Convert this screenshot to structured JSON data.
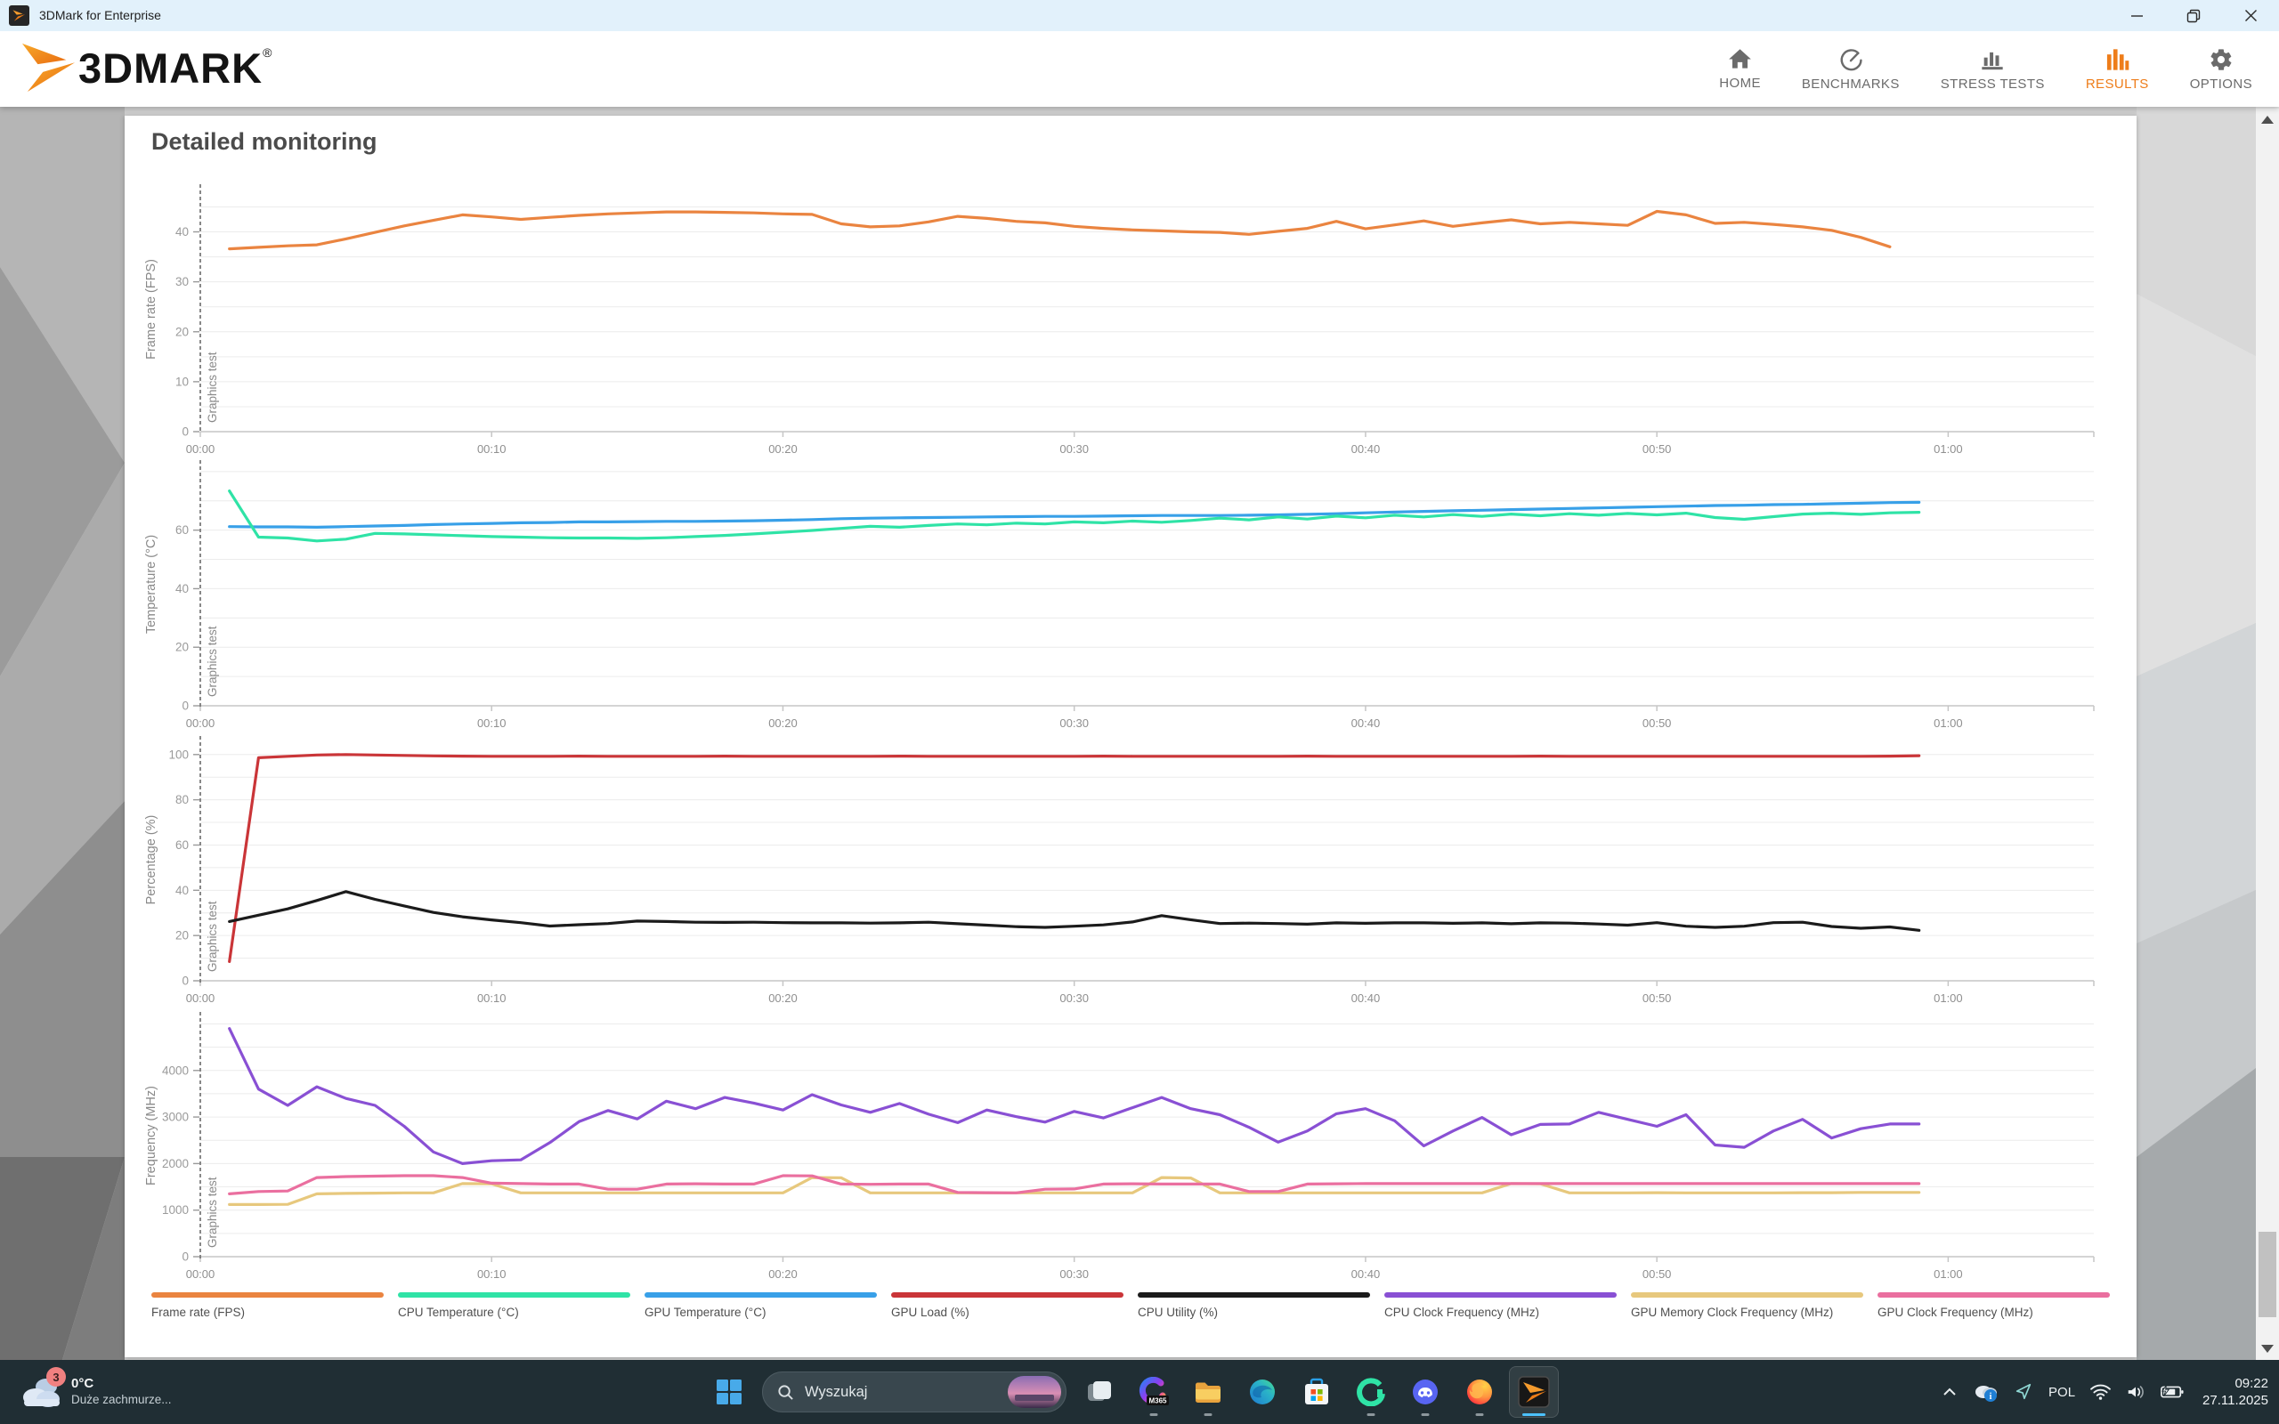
{
  "window": {
    "title": "3DMark for Enterprise"
  },
  "brand": {
    "wordmark": "3DMARK",
    "registered": "®"
  },
  "nav": {
    "active_color": "#ee7d1a",
    "items": [
      {
        "id": "home",
        "label": "HOME",
        "active": false
      },
      {
        "id": "benchmarks",
        "label": "BENCHMARKS",
        "active": false
      },
      {
        "id": "stress-tests",
        "label": "STRESS TESTS",
        "active": false
      },
      {
        "id": "results",
        "label": "RESULTS",
        "active": true
      },
      {
        "id": "options",
        "label": "OPTIONS",
        "active": false
      }
    ]
  },
  "page": {
    "title": "Detailed monitoring"
  },
  "chart_data": [
    {
      "type": "line",
      "ylabel": "Frame rate (FPS)",
      "annotation": "Graphics test",
      "ylim": [
        0,
        49
      ],
      "grid_step": 5,
      "yticks": [
        0,
        10,
        20,
        30,
        40
      ],
      "x": {
        "start": 60,
        "step": 60,
        "max": 3900,
        "tick_seconds": [
          0,
          600,
          1200,
          1800,
          2400,
          3000,
          3600
        ],
        "ticks": [
          "00:00",
          "00:10",
          "00:20",
          "00:30",
          "00:40",
          "00:50",
          "01:00"
        ]
      },
      "series": [
        {
          "name": "Frame rate (FPS)",
          "color": "#ea8440",
          "values": [
            36.6,
            36.9,
            37.2,
            37.4,
            38.6,
            39.9,
            41.2,
            42.3,
            43.4,
            43.0,
            42.5,
            42.9,
            43.3,
            43.6,
            43.8,
            44.0,
            44.0,
            43.9,
            43.8,
            43.6,
            43.5,
            41.6,
            41.0,
            41.2,
            42.0,
            43.1,
            42.7,
            42.1,
            41.8,
            41.1,
            40.7,
            40.4,
            40.2,
            40.0,
            39.9,
            39.5,
            40.1,
            40.7,
            42.1,
            40.6,
            41.4,
            42.2,
            41.1,
            41.8,
            42.4,
            41.6,
            41.9,
            41.6,
            41.3,
            44.1,
            43.4,
            41.7,
            41.9,
            41.5,
            41.0,
            40.3,
            38.9,
            37.0
          ]
        }
      ]
    },
    {
      "type": "line",
      "ylabel": "Temperature (°C)",
      "annotation": "Graphics test",
      "ylim": [
        0,
        83
      ],
      "grid_step": 10,
      "yticks": [
        0,
        20,
        40,
        60
      ],
      "x": {
        "start": 60,
        "step": 60,
        "max": 3900,
        "tick_seconds": [
          0,
          600,
          1200,
          1800,
          2400,
          3000,
          3600
        ],
        "ticks": [
          "00:00",
          "00:10",
          "00:20",
          "00:30",
          "00:40",
          "00:50",
          "01:00"
        ]
      },
      "series": [
        {
          "name": "GPU Temperature (°C)",
          "color": "#38a0e8",
          "values": [
            61.2,
            61.1,
            61.1,
            61.0,
            61.2,
            61.4,
            61.6,
            61.9,
            62.1,
            62.3,
            62.5,
            62.6,
            62.8,
            62.8,
            62.9,
            63.0,
            63.0,
            63.1,
            63.2,
            63.4,
            63.6,
            63.9,
            64.1,
            64.2,
            64.3,
            64.4,
            64.5,
            64.6,
            64.7,
            64.7,
            64.8,
            64.9,
            65.0,
            65.0,
            65.0,
            65.1,
            65.2,
            65.4,
            65.6,
            65.9,
            66.2,
            66.4,
            66.6,
            66.8,
            67.0,
            67.2,
            67.4,
            67.6,
            67.8,
            68.0,
            68.2,
            68.4,
            68.5,
            68.7,
            68.8,
            69.0,
            69.2,
            69.4,
            69.5
          ]
        },
        {
          "name": "CPU Temperature (°C)",
          "color": "#2fe3a6",
          "values": [
            73.4,
            57.6,
            57.3,
            56.3,
            56.9,
            58.9,
            58.7,
            58.4,
            58.1,
            57.8,
            57.6,
            57.4,
            57.3,
            57.3,
            57.2,
            57.4,
            57.8,
            58.2,
            58.7,
            59.3,
            59.9,
            60.6,
            61.3,
            61.0,
            61.6,
            62.1,
            61.8,
            62.4,
            62.1,
            62.8,
            62.5,
            63.1,
            62.7,
            63.3,
            64.1,
            63.5,
            64.5,
            63.8,
            64.8,
            64.2,
            65.1,
            64.5,
            65.3,
            64.7,
            65.5,
            64.9,
            65.6,
            65.1,
            65.7,
            65.2,
            65.8,
            64.3,
            63.7,
            64.6,
            65.5,
            65.8,
            65.4,
            65.9,
            66.1
          ]
        }
      ]
    },
    {
      "type": "line",
      "ylabel": "Percentage (%)",
      "annotation": "Graphics test",
      "ylim": [
        0,
        107
      ],
      "grid_step": 10,
      "yticks": [
        0,
        20,
        40,
        60,
        80,
        100
      ],
      "x": {
        "start": 60,
        "step": 60,
        "max": 3900,
        "tick_seconds": [
          0,
          600,
          1200,
          1800,
          2400,
          3000,
          3600
        ],
        "ticks": [
          "00:00",
          "00:10",
          "00:20",
          "00:30",
          "00:40",
          "00:50",
          "01:00"
        ]
      },
      "series": [
        {
          "name": "GPU Load (%)",
          "color": "#ca3538",
          "values": [
            8.5,
            98.6,
            99.2,
            99.8,
            100,
            99.8,
            99.6,
            99.4,
            99.3,
            99.2,
            99.2,
            99.2,
            99.3,
            99.2,
            99.2,
            99.2,
            99.2,
            99.3,
            99.2,
            99.2,
            99.2,
            99.2,
            99.2,
            99.3,
            99.2,
            99.2,
            99.2,
            99.2,
            99.2,
            99.2,
            99.3,
            99.2,
            99.2,
            99.2,
            99.2,
            99.2,
            99.2,
            99.3,
            99.2,
            99.2,
            99.2,
            99.2,
            99.2,
            99.2,
            99.2,
            99.3,
            99.2,
            99.2,
            99.2,
            99.2,
            99.2,
            99.2,
            99.2,
            99.2,
            99.2,
            99.2,
            99.2,
            99.3,
            99.5
          ]
        },
        {
          "name": "CPU Utility (%)",
          "color": "#1b1b1b",
          "values": [
            26.2,
            29.0,
            31.8,
            35.5,
            39.4,
            36.0,
            33.1,
            30.2,
            28.3,
            26.9,
            25.7,
            24.2,
            24.8,
            25.3,
            26.4,
            26.2,
            25.9,
            25.8,
            25.9,
            25.7,
            25.6,
            25.6,
            25.5,
            25.6,
            25.9,
            25.2,
            24.6,
            23.9,
            23.6,
            24.1,
            24.7,
            26.0,
            28.8,
            27.0,
            25.3,
            25.5,
            25.3,
            25.0,
            25.6,
            25.4,
            25.6,
            25.6,
            25.4,
            25.6,
            25.2,
            25.6,
            25.5,
            25.1,
            24.6,
            25.7,
            24.1,
            23.6,
            24.1,
            25.7,
            25.9,
            24.0,
            23.2,
            23.8,
            22.3
          ]
        }
      ]
    },
    {
      "type": "line",
      "ylabel": "Frequency (MHz)",
      "annotation": "Graphics test",
      "ylim": [
        0,
        5200
      ],
      "grid_step": 500,
      "yticks": [
        0,
        1000,
        2000,
        3000,
        4000
      ],
      "x": {
        "start": 60,
        "step": 60,
        "max": 3900,
        "tick_seconds": [
          0,
          600,
          1200,
          1800,
          2400,
          3000,
          3600
        ],
        "ticks": [
          "00:00",
          "00:10",
          "00:20",
          "00:30",
          "00:40",
          "00:50",
          "01:00"
        ]
      },
      "series": [
        {
          "name": "CPU Clock Frequency (MHz)",
          "color": "#8950d4",
          "values": [
            4900,
            3600,
            3250,
            3650,
            3400,
            3250,
            2800,
            2250,
            2000,
            2060,
            2080,
            2450,
            2900,
            3140,
            2960,
            3340,
            3180,
            3420,
            3300,
            3150,
            3480,
            3260,
            3100,
            3290,
            3060,
            2880,
            3150,
            3010,
            2890,
            3120,
            2980,
            3200,
            3420,
            3180,
            3050,
            2780,
            2460,
            2700,
            3070,
            3180,
            2920,
            2380,
            2700,
            2990,
            2620,
            2840,
            2850,
            3100,
            2950,
            2800,
            3050,
            2400,
            2350,
            2700,
            2950,
            2550,
            2750,
            2850,
            2850
          ]
        },
        {
          "name": "GPU Memory Clock Frequency (MHz)",
          "color": "#e7c87d",
          "values": [
            1120,
            1120,
            1125,
            1350,
            1360,
            1365,
            1370,
            1370,
            1570,
            1565,
            1370,
            1370,
            1370,
            1370,
            1370,
            1370,
            1370,
            1370,
            1370,
            1370,
            1700,
            1695,
            1370,
            1370,
            1370,
            1370,
            1370,
            1370,
            1370,
            1370,
            1370,
            1370,
            1700,
            1690,
            1370,
            1370,
            1370,
            1370,
            1370,
            1370,
            1370,
            1370,
            1370,
            1370,
            1570,
            1565,
            1370,
            1370,
            1370,
            1375,
            1370,
            1370,
            1370,
            1370,
            1375,
            1375,
            1380,
            1380,
            1380
          ]
        },
        {
          "name": "GPU Clock Frequency (MHz)",
          "color": "#ea6f9f",
          "values": [
            1350,
            1400,
            1410,
            1700,
            1720,
            1730,
            1740,
            1740,
            1700,
            1580,
            1570,
            1560,
            1560,
            1450,
            1450,
            1560,
            1565,
            1560,
            1560,
            1740,
            1735,
            1560,
            1555,
            1560,
            1560,
            1380,
            1375,
            1370,
            1450,
            1455,
            1560,
            1565,
            1560,
            1560,
            1560,
            1400,
            1400,
            1560,
            1565,
            1570,
            1570,
            1570,
            1570,
            1570,
            1570,
            1570,
            1570,
            1570,
            1570,
            1570,
            1570,
            1570,
            1570,
            1570,
            1570,
            1570,
            1570,
            1570,
            1570
          ]
        }
      ]
    }
  ],
  "legend": {
    "items": [
      {
        "label": "Frame rate (FPS)",
        "color": "#ea8440"
      },
      {
        "label": "CPU Temperature (°C)",
        "color": "#2fe3a6"
      },
      {
        "label": "GPU Temperature (°C)",
        "color": "#38a0e8"
      },
      {
        "label": "GPU Load (%)",
        "color": "#ca3538"
      },
      {
        "label": "CPU Utility (%)",
        "color": "#1b1b1b"
      },
      {
        "label": "CPU Clock Frequency (MHz)",
        "color": "#8950d4"
      },
      {
        "label": "GPU Memory Clock Frequency (MHz)",
        "color": "#e7c87d"
      },
      {
        "label": "GPU Clock Frequency (MHz)",
        "color": "#ea6f9f"
      }
    ]
  },
  "taskbar": {
    "weather": {
      "badge": "3",
      "temp": "0°C",
      "condition": "Duże zachmurze..."
    },
    "search": {
      "placeholder": "Wyszukaj"
    },
    "apps": [
      {
        "name": "task-view",
        "indicator": "none"
      },
      {
        "name": "copilot-m365",
        "badge": "M365",
        "indicator": "dot"
      },
      {
        "name": "file-explorer",
        "indicator": "dot"
      },
      {
        "name": "microsoft-edge",
        "indicator": "none"
      },
      {
        "name": "microsoft-store",
        "indicator": "none"
      },
      {
        "name": "g-hub",
        "indicator": "dot"
      },
      {
        "name": "discord",
        "indicator": "dot"
      },
      {
        "name": "firefox",
        "indicator": "dot"
      },
      {
        "name": "3dmark",
        "indicator": "active"
      }
    ],
    "tray": {
      "language": "POL",
      "time": "09:22",
      "date": "27.11.2025"
    }
  }
}
